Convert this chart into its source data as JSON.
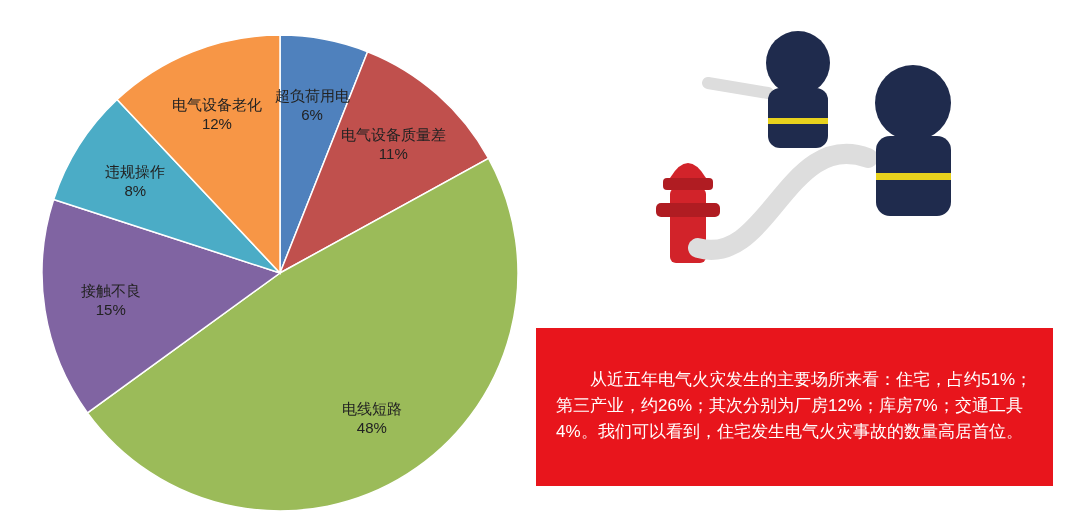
{
  "chart_data": {
    "type": "pie",
    "categories": [
      "超负荷用电",
      "电气设备质量差",
      "电线短路",
      "接触不良",
      "违规操作",
      "电气设备老化"
    ],
    "values": [
      6,
      11,
      48,
      15,
      8,
      12
    ],
    "colors": [
      "#4f81bd",
      "#c0504d",
      "#9bbb59",
      "#8064a2",
      "#4bacc6",
      "#f79646"
    ],
    "value_labels": [
      "6%",
      "11%",
      "48%",
      "15%",
      "8%",
      "12%"
    ],
    "annotations": [
      "从近五年电气火灾发生的主要场所来看：住宅，占约51%；第三产业，约26%；其次分别为厂房12%；库房7%；交通工具4%。我们可以看到，住宅发生电气火灾事故的数量高居首位。"
    ]
  }
}
